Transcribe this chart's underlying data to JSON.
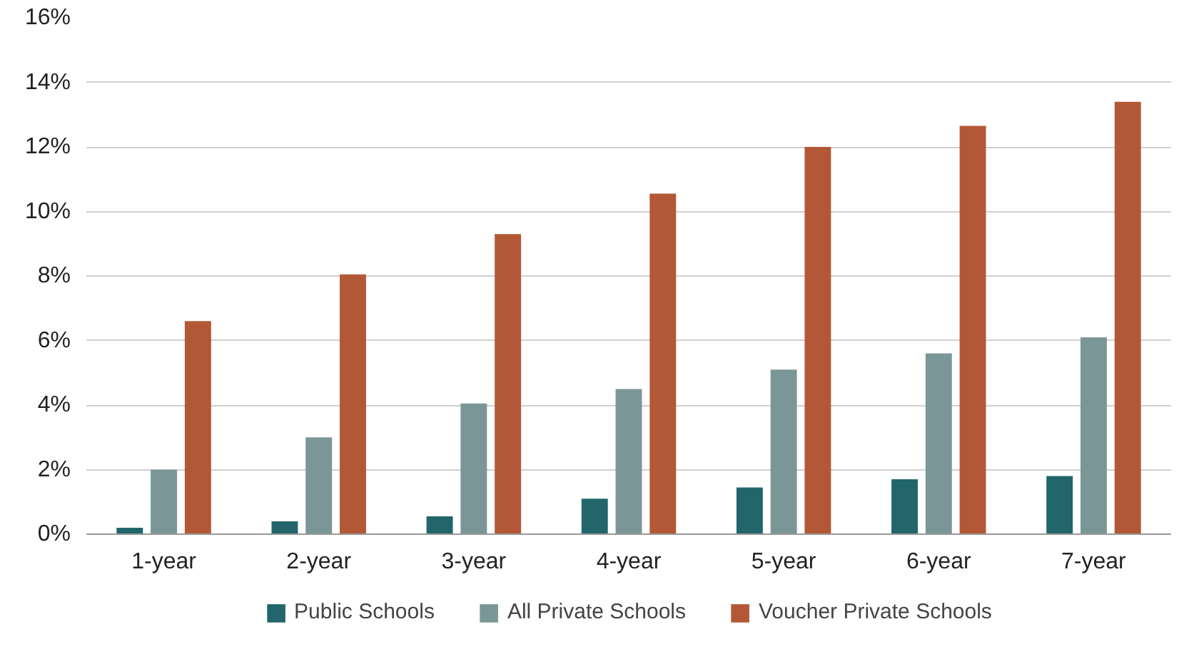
{
  "chart_data": {
    "type": "bar",
    "categories": [
      "1-year",
      "2-year",
      "3-year",
      "4-year",
      "5-year",
      "6-year",
      "7-year"
    ],
    "series": [
      {
        "name": "Public Schools",
        "color": "#22666b",
        "values": [
          0.2,
          0.4,
          0.55,
          1.1,
          1.45,
          1.7,
          1.8
        ]
      },
      {
        "name": "All Private Schools",
        "color": "#7b9696",
        "values": [
          2.0,
          3.0,
          4.05,
          4.5,
          5.1,
          5.6,
          6.1
        ]
      },
      {
        "name": "Voucher Private Schools",
        "color": "#b35836",
        "values": [
          6.6,
          8.05,
          9.3,
          10.55,
          12.0,
          12.65,
          13.4
        ]
      }
    ],
    "ylim": [
      0,
      16
    ],
    "yticks": [
      {
        "value": 0,
        "label": "0%"
      },
      {
        "value": 2,
        "label": "2%"
      },
      {
        "value": 4,
        "label": "4%"
      },
      {
        "value": 6,
        "label": "6%"
      },
      {
        "value": 8,
        "label": "8%"
      },
      {
        "value": 10,
        "label": "10%"
      },
      {
        "value": 12,
        "label": "12%"
      },
      {
        "value": 14,
        "label": "14%"
      },
      {
        "value": 16,
        "label": "16%"
      }
    ],
    "grid": "y",
    "legend": "bottom"
  }
}
